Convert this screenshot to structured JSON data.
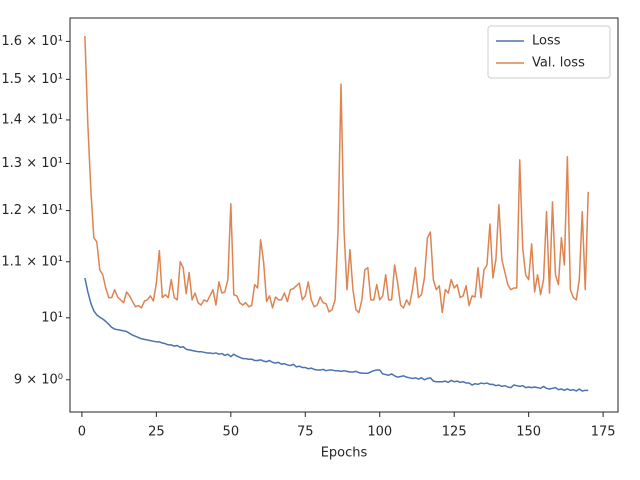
{
  "chart_data": {
    "type": "line",
    "xlabel": "Epochs",
    "log_y": true,
    "legend": "upper right",
    "x": [
      1,
      2,
      3,
      4,
      5,
      6,
      7,
      8,
      9,
      10,
      11,
      12,
      13,
      14,
      15,
      16,
      17,
      18,
      19,
      20,
      21,
      22,
      23,
      24,
      25,
      26,
      27,
      28,
      29,
      30,
      31,
      32,
      33,
      34,
      35,
      36,
      37,
      38,
      39,
      40,
      41,
      42,
      43,
      44,
      45,
      46,
      47,
      48,
      49,
      50,
      51,
      52,
      53,
      54,
      55,
      56,
      57,
      58,
      59,
      60,
      61,
      62,
      63,
      64,
      65,
      66,
      67,
      68,
      69,
      70,
      71,
      72,
      73,
      74,
      75,
      76,
      77,
      78,
      79,
      80,
      81,
      82,
      83,
      84,
      85,
      86,
      87,
      88,
      89,
      90,
      91,
      92,
      93,
      94,
      95,
      96,
      97,
      98,
      99,
      100,
      101,
      102,
      103,
      104,
      105,
      106,
      107,
      108,
      109,
      110,
      111,
      112,
      113,
      114,
      115,
      116,
      117,
      118,
      119,
      120,
      121,
      122,
      123,
      124,
      125,
      126,
      127,
      128,
      129,
      130,
      131,
      132,
      133,
      134,
      135,
      136,
      137,
      138,
      139,
      140,
      141,
      142,
      143,
      144,
      145,
      146,
      147,
      148,
      149,
      150,
      151,
      152,
      153,
      154,
      155,
      156,
      157,
      158,
      159,
      160,
      161,
      162,
      163,
      164,
      165,
      166,
      167,
      168,
      169,
      170
    ],
    "series": [
      {
        "name": "Loss",
        "color": "#4c72b0",
        "values": [
          10.7,
          10.45,
          10.25,
          10.12,
          10.05,
          10.01,
          9.98,
          9.94,
          9.89,
          9.84,
          9.81,
          9.8,
          9.79,
          9.78,
          9.77,
          9.74,
          9.71,
          9.69,
          9.67,
          9.65,
          9.64,
          9.63,
          9.62,
          9.61,
          9.6,
          9.6,
          9.58,
          9.57,
          9.55,
          9.55,
          9.53,
          9.54,
          9.51,
          9.52,
          9.48,
          9.47,
          9.46,
          9.45,
          9.44,
          9.44,
          9.43,
          9.42,
          9.42,
          9.41,
          9.42,
          9.4,
          9.41,
          9.38,
          9.4,
          9.36,
          9.4,
          9.37,
          9.35,
          9.33,
          9.33,
          9.32,
          9.32,
          9.3,
          9.3,
          9.31,
          9.29,
          9.28,
          9.3,
          9.27,
          9.26,
          9.27,
          9.24,
          9.25,
          9.23,
          9.22,
          9.24,
          9.2,
          9.21,
          9.19,
          9.19,
          9.17,
          9.18,
          9.16,
          9.15,
          9.15,
          9.16,
          9.14,
          9.15,
          9.15,
          9.14,
          9.14,
          9.13,
          9.14,
          9.13,
          9.12,
          9.12,
          9.13,
          9.11,
          9.1,
          9.1,
          9.1,
          9.12,
          9.14,
          9.15,
          9.15,
          9.09,
          9.08,
          9.07,
          9.09,
          9.06,
          9.04,
          9.05,
          9.06,
          9.04,
          9.03,
          9.02,
          9.03,
          9.01,
          9.03,
          9.0,
          9.02,
          9.03,
          8.98,
          8.97,
          8.97,
          8.97,
          8.98,
          8.96,
          8.99,
          8.97,
          8.98,
          8.96,
          8.97,
          8.95,
          8.95,
          8.92,
          8.94,
          8.93,
          8.95,
          8.94,
          8.95,
          8.93,
          8.93,
          8.91,
          8.92,
          8.9,
          8.91,
          8.89,
          8.88,
          8.92,
          8.91,
          8.9,
          8.91,
          8.88,
          8.89,
          8.88,
          8.89,
          8.88,
          8.87,
          8.9,
          8.87,
          8.86,
          8.87,
          8.88,
          8.85,
          8.86,
          8.84,
          8.86,
          8.84,
          8.85,
          8.83,
          8.86,
          8.83,
          8.84,
          8.84
        ]
      },
      {
        "name": "Val. loss",
        "color": "#dd8452",
        "values": [
          16.15,
          13.88,
          12.43,
          11.46,
          11.38,
          10.85,
          10.76,
          10.52,
          10.35,
          10.35,
          10.49,
          10.36,
          10.31,
          10.26,
          10.45,
          10.38,
          10.28,
          10.19,
          10.21,
          10.17,
          10.29,
          10.31,
          10.38,
          10.29,
          10.61,
          11.21,
          10.35,
          10.4,
          10.35,
          10.67,
          10.35,
          10.31,
          11.0,
          10.89,
          10.42,
          10.8,
          10.31,
          10.43,
          10.26,
          10.22,
          10.31,
          10.28,
          10.38,
          10.49,
          10.22,
          10.63,
          10.43,
          10.45,
          10.67,
          12.14,
          10.4,
          10.38,
          10.26,
          10.22,
          10.26,
          10.19,
          10.21,
          10.58,
          10.52,
          11.42,
          11.0,
          10.28,
          10.38,
          10.17,
          10.36,
          10.31,
          10.31,
          10.43,
          10.28,
          10.49,
          10.51,
          10.56,
          10.61,
          10.31,
          10.38,
          10.63,
          10.31,
          10.19,
          10.22,
          10.36,
          10.26,
          10.24,
          10.1,
          10.14,
          10.31,
          11.61,
          14.88,
          11.61,
          10.49,
          11.23,
          10.49,
          10.14,
          10.09,
          10.31,
          10.85,
          10.89,
          10.31,
          10.31,
          10.58,
          10.31,
          10.38,
          10.76,
          10.31,
          10.31,
          10.94,
          10.61,
          10.22,
          10.17,
          10.31,
          10.22,
          10.49,
          10.89,
          10.35,
          10.4,
          10.7,
          11.46,
          11.57,
          10.67,
          10.49,
          10.56,
          10.09,
          10.49,
          10.43,
          10.67,
          10.52,
          10.58,
          10.35,
          10.38,
          10.56,
          10.21,
          10.38,
          10.36,
          10.89,
          10.35,
          10.85,
          10.94,
          11.73,
          10.7,
          11.04,
          12.12,
          11.04,
          10.81,
          10.58,
          10.49,
          10.52,
          10.52,
          13.08,
          11.26,
          10.76,
          10.67,
          11.34,
          10.45,
          10.76,
          10.4,
          10.67,
          11.98,
          10.43,
          12.18,
          10.76,
          10.58,
          11.46,
          10.94,
          13.15,
          10.49,
          10.35,
          10.31,
          10.67,
          11.98,
          10.49,
          12.39
        ]
      }
    ],
    "xlim": [
      -4,
      180
    ],
    "xticks": [
      0,
      25,
      50,
      75,
      100,
      125,
      150,
      175
    ],
    "ylim": [
      8.52,
      16.65
    ],
    "yticks": [
      {
        "value": 9,
        "label": "9 × 10⁰"
      },
      {
        "value": 10,
        "label": "10¹"
      },
      {
        "value": 11,
        "label": "1.1 × 10¹"
      },
      {
        "value": 12,
        "label": "1.2 × 10¹"
      },
      {
        "value": 13,
        "label": "1.3 × 10¹"
      },
      {
        "value": 14,
        "label": "1.4 × 10¹"
      },
      {
        "value": 15,
        "label": "1.5 × 10¹"
      },
      {
        "value": 16,
        "label": "1.6 × 10¹"
      }
    ]
  }
}
